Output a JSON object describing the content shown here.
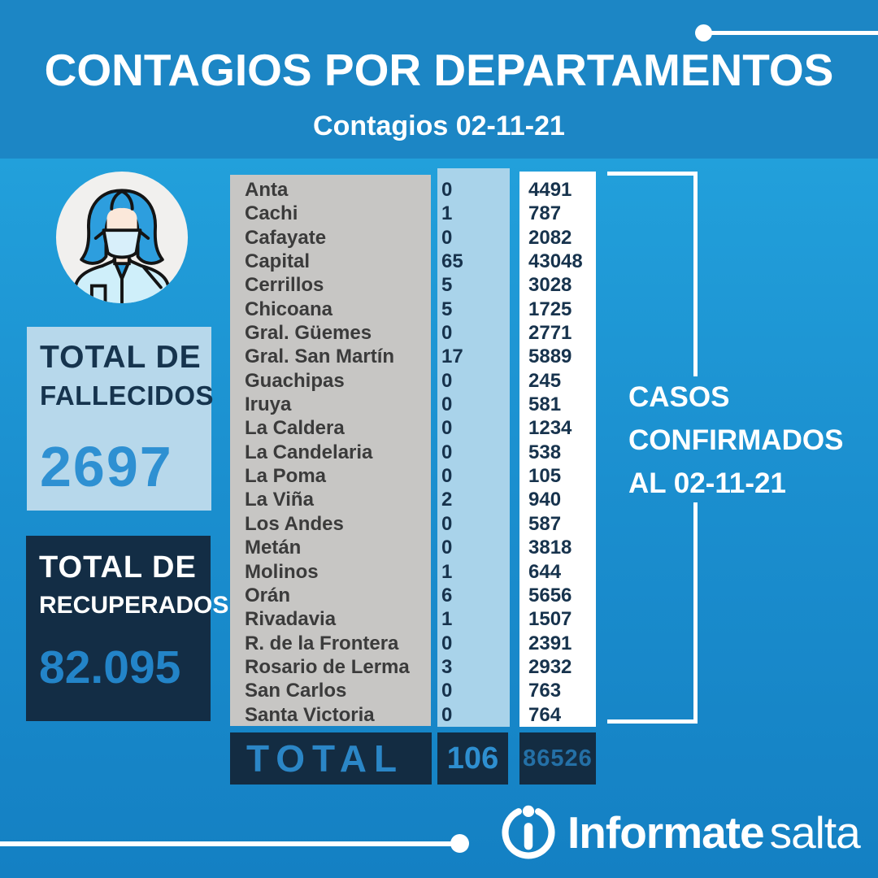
{
  "header": {
    "title": "CONTAGIOS POR DEPARTAMENTOS",
    "subtitle": "Contagios 02-11-21"
  },
  "fallecidos": {
    "label_line1": "TOTAL DE",
    "label_line2": "FALLECIDOS",
    "value": "2697"
  },
  "recuperados": {
    "label_line1": "TOTAL DE",
    "label_line2": "RECUPERADOS",
    "value": "82.095"
  },
  "table": {
    "rows": [
      {
        "department": "Anta",
        "daily": "0",
        "confirmed": "4491"
      },
      {
        "department": "Cachi",
        "daily": "1",
        "confirmed": "787"
      },
      {
        "department": "Cafayate",
        "daily": "0",
        "confirmed": "2082"
      },
      {
        "department": "Capital",
        "daily": "65",
        "confirmed": "43048"
      },
      {
        "department": "Cerrillos",
        "daily": "5",
        "confirmed": "3028"
      },
      {
        "department": "Chicoana",
        "daily": "5",
        "confirmed": "1725"
      },
      {
        "department": "Gral. Güemes",
        "daily": "0",
        "confirmed": "2771"
      },
      {
        "department": "Gral. San Martín",
        "daily": "17",
        "confirmed": "5889"
      },
      {
        "department": "Guachipas",
        "daily": "0",
        "confirmed": "245"
      },
      {
        "department": "Iruya",
        "daily": "0",
        "confirmed": "581"
      },
      {
        "department": "La Caldera",
        "daily": "0",
        "confirmed": "1234"
      },
      {
        "department": "La Candelaria",
        "daily": "0",
        "confirmed": "538"
      },
      {
        "department": "La Poma",
        "daily": "0",
        "confirmed": "105"
      },
      {
        "department": "La Viña",
        "daily": "2",
        "confirmed": "940"
      },
      {
        "department": "Los Andes",
        "daily": "0",
        "confirmed": "587"
      },
      {
        "department": "Metán",
        "daily": "0",
        "confirmed": "3818"
      },
      {
        "department": "Molinos",
        "daily": "1",
        "confirmed": "644"
      },
      {
        "department": "Orán",
        "daily": "6",
        "confirmed": "5656"
      },
      {
        "department": "Rivadavia",
        "daily": "1",
        "confirmed": "1507"
      },
      {
        "department": "R. de la Frontera",
        "daily": "0",
        "confirmed": "2391"
      },
      {
        "department": "Rosario de Lerma",
        "daily": "3",
        "confirmed": "2932"
      },
      {
        "department": "San Carlos",
        "daily": "0",
        "confirmed": "763"
      },
      {
        "department": "Santa Victoria",
        "daily": "0",
        "confirmed": "764"
      }
    ],
    "total": {
      "label": "TOTAL",
      "daily": "106",
      "confirmed": "86526"
    }
  },
  "annotation": {
    "lines": [
      "CASOS",
      "CONFIRMADOS",
      "AL 02-11-21"
    ]
  },
  "logo": {
    "strong": "Informate",
    "light": "salta",
    "icon": "info-circle-icon"
  },
  "icons": {
    "avatar": "nurse-avatar-icon"
  },
  "colors": {
    "header_band": "#1C86C5",
    "background_top": "#2EB0E7",
    "background_bottom": "#1480C3",
    "dept_column": "#C7C6C4",
    "daily_column": "#A9D3EA",
    "confirmed_column": "#FFFFFF",
    "dark_navy": "#132C42",
    "fallecidos_box": "#B7D8EB",
    "accent_blue": "#2E90D2",
    "white": "#FFFFFF"
  },
  "chart_data": {
    "type": "table",
    "title": "CONTAGIOS POR DEPARTAMENTOS",
    "subtitle": "Contagios 02-11-21",
    "categories": [
      "Anta",
      "Cachi",
      "Cafayate",
      "Capital",
      "Cerrillos",
      "Chicoana",
      "Gral. Güemes",
      "Gral. San Martín",
      "Guachipas",
      "Iruya",
      "La Caldera",
      "La Candelaria",
      "La Poma",
      "La Viña",
      "Los Andes",
      "Metán",
      "Molinos",
      "Orán",
      "Rivadavia",
      "R. de la Frontera",
      "Rosario de Lerma",
      "San Carlos",
      "Santa Victoria"
    ],
    "series": [
      {
        "name": "Contagios 02-11-21",
        "values": [
          0,
          1,
          0,
          65,
          5,
          5,
          0,
          17,
          0,
          0,
          0,
          0,
          0,
          2,
          0,
          0,
          1,
          6,
          1,
          0,
          3,
          0,
          0
        ]
      },
      {
        "name": "Casos confirmados al 02-11-21",
        "values": [
          4491,
          787,
          2082,
          43048,
          3028,
          1725,
          2771,
          5889,
          245,
          581,
          1234,
          538,
          105,
          940,
          587,
          3818,
          644,
          5656,
          1507,
          2391,
          2932,
          763,
          764
        ]
      }
    ],
    "totals": {
      "contagios": 106,
      "confirmados": 86526
    },
    "extra_stats": {
      "total_fallecidos": 2697,
      "total_recuperados": "82.095"
    }
  }
}
